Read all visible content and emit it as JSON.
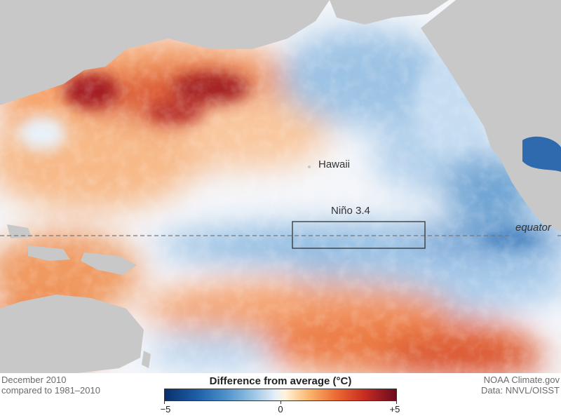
{
  "map": {
    "labels": {
      "hawaii": "Hawaii",
      "nino": "Niño 3.4",
      "equator": "equator"
    },
    "colors": {
      "land": "#c8c8c8",
      "box_outline": "#333333",
      "equator_line": "#777777"
    }
  },
  "footer": {
    "date_line1": "December 2010",
    "date_line2": "compared to 1981–2010",
    "credit_line1": "NOAA Climate.gov",
    "credit_line2": "Data: NNVL/OISST"
  },
  "legend": {
    "title": "Difference from average (°C)",
    "min_label": "−5",
    "mid_label": "0",
    "max_label": "+5",
    "range": [
      -5,
      5
    ]
  }
}
